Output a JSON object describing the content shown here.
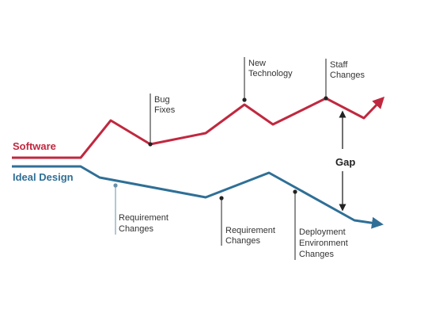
{
  "colors": {
    "software": "#c0283f",
    "ideal": "#2f6f96",
    "annotation": "#222222",
    "text": "#333333"
  },
  "series": {
    "software_label": "Software",
    "ideal_label": "Ideal Design"
  },
  "gap_label": "Gap",
  "annotations": {
    "bug_fixes": [
      "Bug",
      "Fixes"
    ],
    "new_technology": [
      "New",
      "Technology"
    ],
    "staff_changes": [
      "Staff",
      "Changes"
    ],
    "requirement_changes_1": [
      "Requirement",
      "Changes"
    ],
    "requirement_changes_2": [
      "Requirement",
      "Changes"
    ],
    "deployment_changes": [
      "Deployment",
      "Environment",
      "Changes"
    ]
  }
}
